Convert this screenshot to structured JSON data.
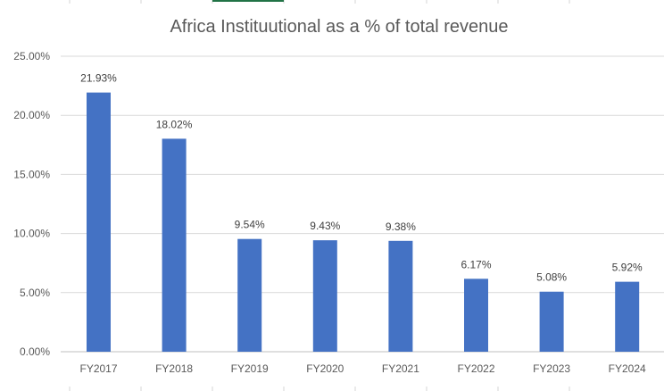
{
  "colors": {
    "bar": "#4472C4",
    "background": "#FFFFFF",
    "sheet_accent": "#217346"
  },
  "chart_data": {
    "type": "bar",
    "title": "Africa Instituutional as a % of total revenue",
    "xlabel": "",
    "ylabel": "",
    "categories": [
      "FY2017",
      "FY2018",
      "FY2019",
      "FY2020",
      "FY2021",
      "FY2022",
      "FY2023",
      "FY2024"
    ],
    "values": [
      21.93,
      18.02,
      9.54,
      9.43,
      9.38,
      6.17,
      5.08,
      5.92
    ],
    "data_labels": [
      "21.93%",
      "18.02%",
      "9.54%",
      "9.43%",
      "9.38%",
      "6.17%",
      "5.08%",
      "5.92%"
    ],
    "ylim": [
      0,
      25
    ],
    "y_ticks": [
      0,
      5,
      10,
      15,
      20,
      25
    ],
    "y_tick_labels": [
      "0.00%",
      "5.00%",
      "10.00%",
      "15.00%",
      "20.00%",
      "25.00%"
    ],
    "grid": true,
    "legend": "none"
  }
}
